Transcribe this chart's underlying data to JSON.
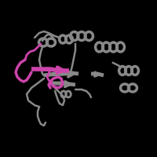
{
  "background_color": "#000000",
  "figsize": [
    2.0,
    2.0
  ],
  "dpi": 100,
  "protein_color": "#888888",
  "domain_color": "#cc44aa",
  "protein_color_light": "#aaaaaa",
  "protein_color_dark": "#666666"
}
